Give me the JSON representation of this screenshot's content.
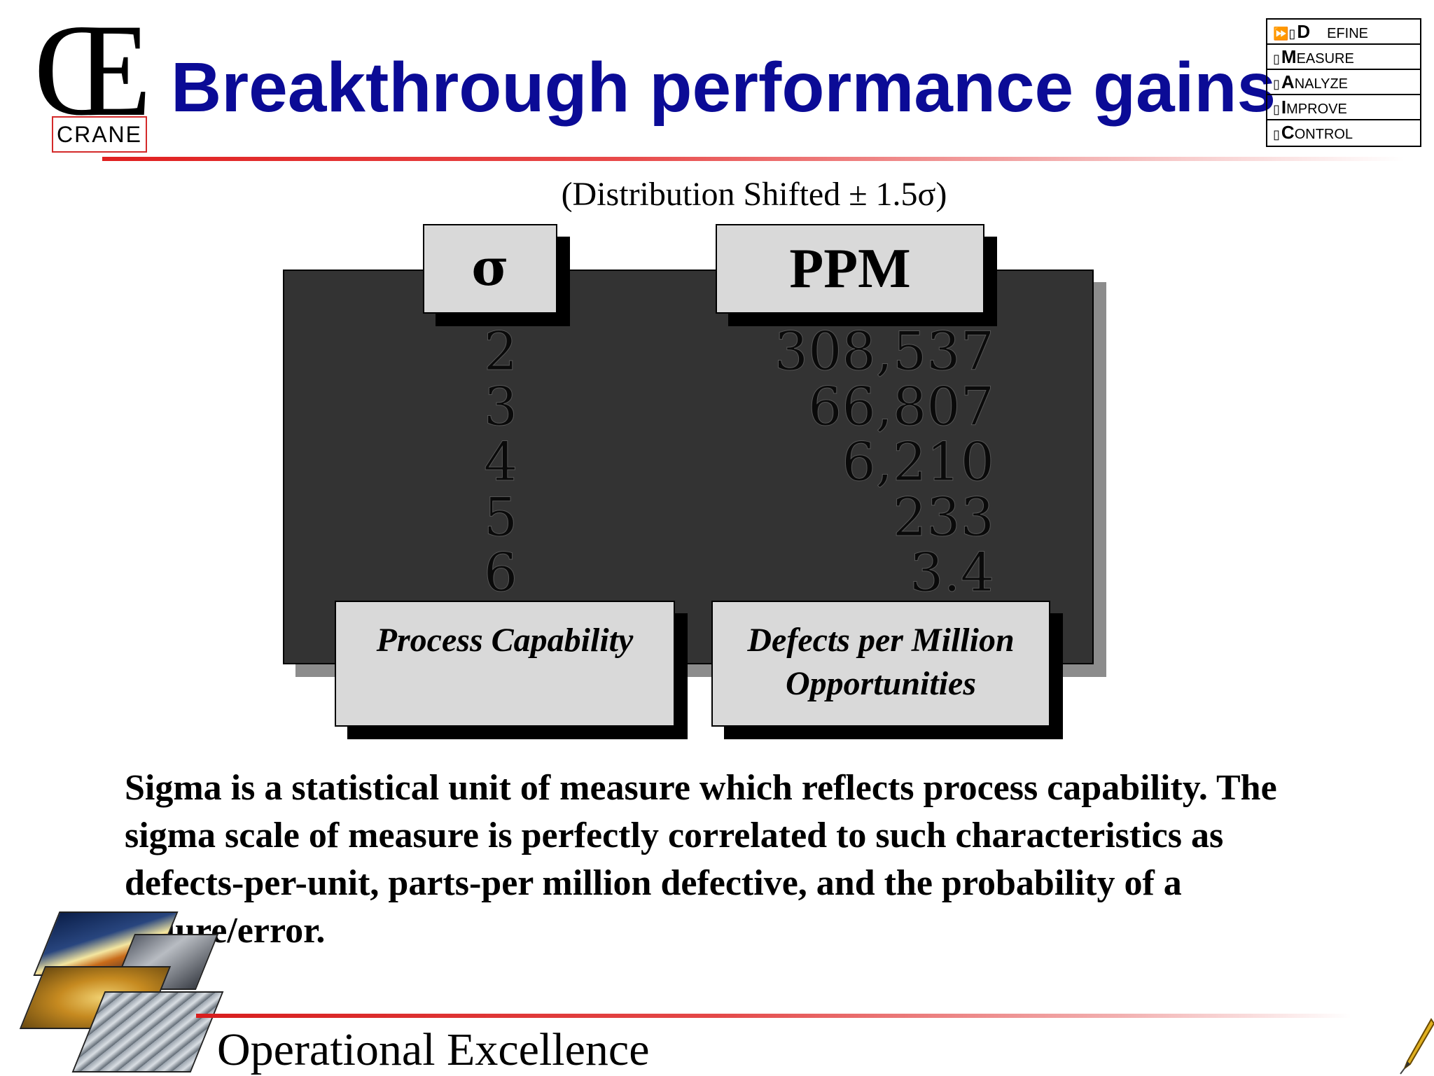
{
  "logo": {
    "mark": "Œ",
    "name": "CRANE"
  },
  "title": "Breakthrough performance gains",
  "dmaic": {
    "items": [
      {
        "marker": "⏩▯",
        "initial": "D",
        "rest": "EFINE",
        "active": true,
        "icon": "fast-forward-icon"
      },
      {
        "marker": "▯",
        "initial": "M",
        "rest": "EASURE",
        "active": false
      },
      {
        "marker": "▯",
        "initial": "A",
        "rest": "NALYZE",
        "active": false
      },
      {
        "marker": "▯",
        "initial": "I",
        "rest": "MPROVE",
        "active": false
      },
      {
        "marker": "▯",
        "initial": "C",
        "rest": "ONTROL",
        "active": false
      }
    ]
  },
  "subtitle": "(Distribution Shifted ± 1.5σ)",
  "table": {
    "sigma_header": "σ",
    "ppm_header": "PPM",
    "sigma_label": "Process Capability",
    "ppm_label": "Defects per Million Opportunities",
    "rows": [
      {
        "sigma": "2",
        "ppm": "308,537"
      },
      {
        "sigma": "3",
        "ppm": "66,807"
      },
      {
        "sigma": "4",
        "ppm": "6,210"
      },
      {
        "sigma": "5",
        "ppm": "233"
      },
      {
        "sigma": "6",
        "ppm": "3.4"
      }
    ]
  },
  "body_text": "Sigma is a statistical unit of measure which reflects process capability.  The sigma scale of measure is perfectly correlated to such characteristics as defects-per-unit, parts-per million defective, and the probability of a failure/error.",
  "footer": {
    "text": "Operational Excellence",
    "icon": "pen-icon"
  },
  "colors": {
    "title": "#0b0b96",
    "rule": "#e02020",
    "panel": "#333333",
    "label_box": "#d9d9d9"
  }
}
